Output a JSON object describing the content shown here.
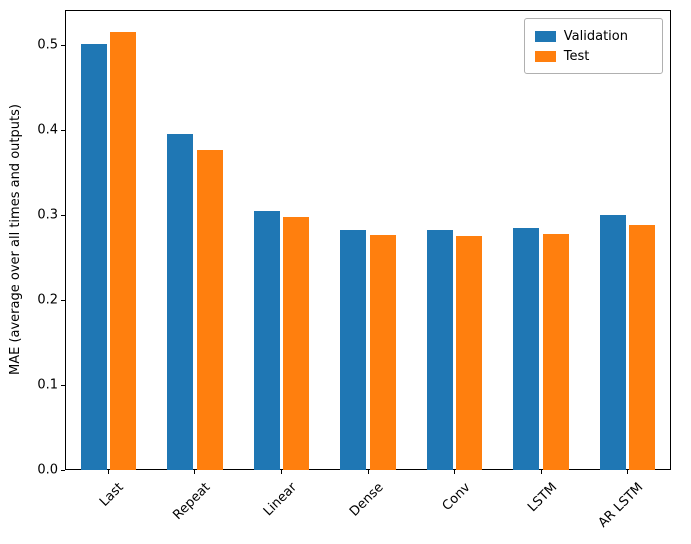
{
  "chart_data": {
    "type": "bar",
    "categories": [
      "Last",
      "Repeat",
      "Linear",
      "Dense",
      "Conv",
      "LSTM",
      "AR LSTM"
    ],
    "series": [
      {
        "name": "Validation",
        "color": "#1f77b4",
        "values": [
          0.501,
          0.396,
          0.305,
          0.283,
          0.283,
          0.285,
          0.3
        ]
      },
      {
        "name": "Test",
        "color": "#ff7f0e",
        "values": [
          0.516,
          0.377,
          0.298,
          0.277,
          0.276,
          0.278,
          0.289
        ]
      }
    ],
    "title": "",
    "xlabel": "",
    "ylabel": "MAE (average over all times and outputs)",
    "ylim": [
      0,
      0.5416
    ],
    "yticks": [
      0.0,
      0.1,
      0.2,
      0.3,
      0.4,
      0.5
    ],
    "ytick_labels": [
      "0.0",
      "0.1",
      "0.2",
      "0.3",
      "0.4",
      "0.5"
    ],
    "xtick_rotation_deg": 45,
    "legend_position": "upper right",
    "grid": false,
    "bar_group_width_fraction": 0.3,
    "bar_offset_fraction": 0.17
  }
}
